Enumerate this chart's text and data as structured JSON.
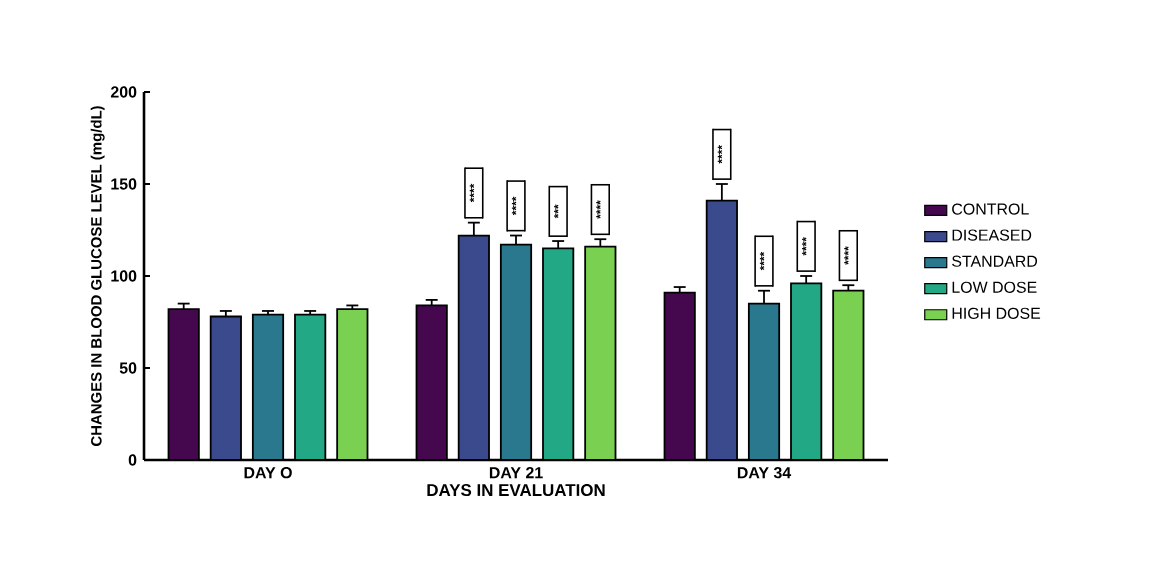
{
  "chart_data": {
    "type": "bar",
    "xlabel": "DAYS IN EVALUATION",
    "ylabel": "CHANGES IN BLOOD GLUCOSE LEVEL (mg/dL)",
    "categories": [
      "DAY O",
      "DAY 21",
      "DAY 34"
    ],
    "series": [
      {
        "name": "CONTROL",
        "color": "#45084f",
        "values": [
          82,
          84,
          91
        ],
        "errors": [
          3,
          3,
          3
        ]
      },
      {
        "name": "DISEASED",
        "color": "#3b4a8c",
        "values": [
          78,
          122,
          141
        ],
        "errors": [
          3,
          7,
          9
        ]
      },
      {
        "name": "STANDARD",
        "color": "#2a788e",
        "values": [
          79,
          117,
          85
        ],
        "errors": [
          2,
          5,
          7
        ]
      },
      {
        "name": "LOW DOSE",
        "color": "#22a884",
        "values": [
          79,
          115,
          96
        ],
        "errors": [
          2,
          4,
          4
        ]
      },
      {
        "name": "HIGH DOSE",
        "color": "#7ad151",
        "values": [
          82,
          116,
          92
        ],
        "errors": [
          2,
          4,
          3
        ]
      }
    ],
    "ylim": [
      0,
      200
    ],
    "yticks": [
      0,
      50,
      100,
      150,
      200
    ],
    "grid": false,
    "legend": "right",
    "annotations": [
      "****",
      "****",
      "***",
      "****",
      "****",
      "****",
      "****",
      "****"
    ]
  }
}
